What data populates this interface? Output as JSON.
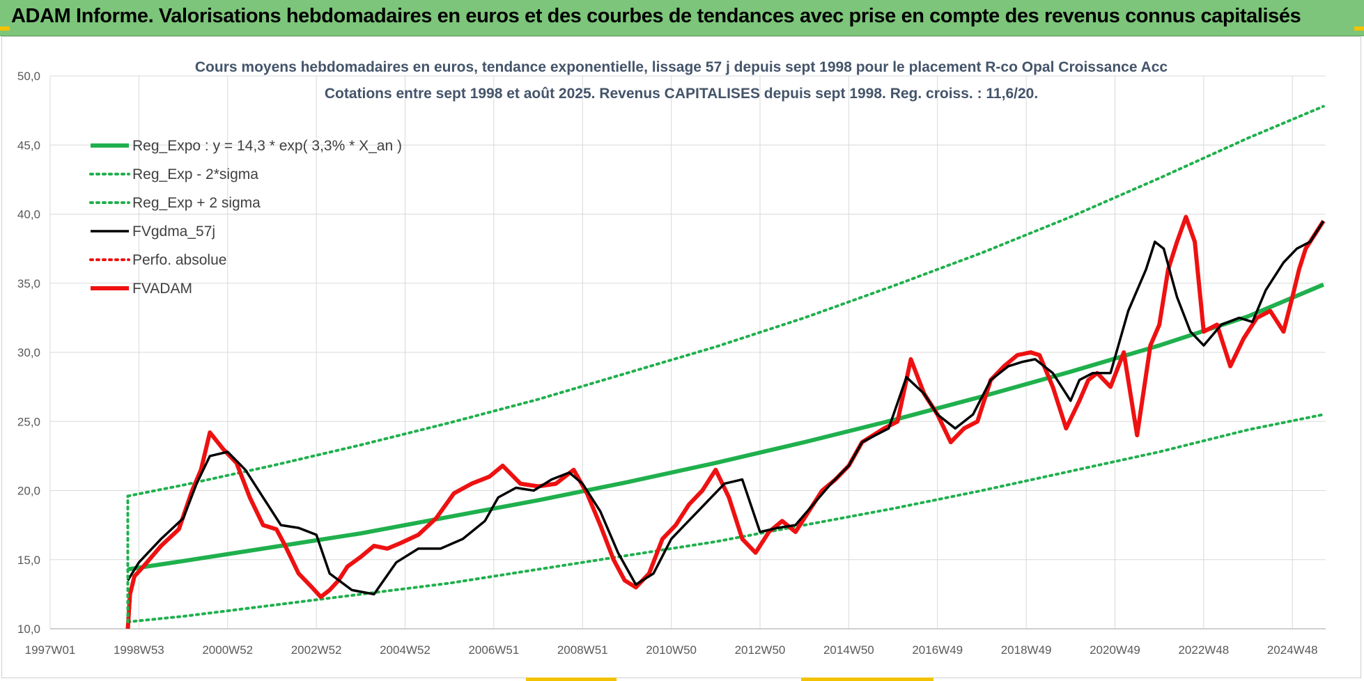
{
  "header": {
    "title": "ADAM Informe. Valorisations hebdomadaires en euros et des courbes de tendances avec prise en compte des revenus connus capitalisés"
  },
  "colors": {
    "banner": "#7cc57a",
    "reg_green": "#1fb04d",
    "black": "#000000",
    "red": "#ee1111",
    "grid": "#d9d9d9",
    "accent_yellow": "#f2c200"
  },
  "chart_data": {
    "type": "line",
    "title_line1": "Cours moyens hebdomadaires en euros, tendance exponentielle, lissage 57 j depuis sept 1998 pour le placement R-co Opal Croissance Acc",
    "title_line2": "Cotations entre sept 1998 et août 2025. Revenus CAPITALISES depuis sept 1998. Reg. croiss. : 11,6/20.",
    "xlabel": "",
    "ylabel": "",
    "ylim": [
      10,
      50
    ],
    "xlim": [
      1997.0,
      2025.75
    ],
    "y_ticks": [
      "10,0",
      "15,0",
      "20,0",
      "25,0",
      "30,0",
      "35,0",
      "40,0",
      "45,0",
      "50,0"
    ],
    "x_ticks": [
      {
        "label": "1997W01",
        "x": 1997.0
      },
      {
        "label": "1998W53",
        "x": 1999.0
      },
      {
        "label": "2000W52",
        "x": 2001.0
      },
      {
        "label": "2002W52",
        "x": 2003.0
      },
      {
        "label": "2004W52",
        "x": 2005.0
      },
      {
        "label": "2006W51",
        "x": 2007.0
      },
      {
        "label": "2008W51",
        "x": 2009.0
      },
      {
        "label": "2010W50",
        "x": 2011.0
      },
      {
        "label": "2012W50",
        "x": 2013.0
      },
      {
        "label": "2014W50",
        "x": 2015.0
      },
      {
        "label": "2016W49",
        "x": 2017.0
      },
      {
        "label": "2018W49",
        "x": 2019.0
      },
      {
        "label": "2020W49",
        "x": 2021.0
      },
      {
        "label": "2022W48",
        "x": 2023.0
      },
      {
        "label": "2024W48",
        "x": 2025.0
      }
    ],
    "grid": true,
    "legend_position": "top-left",
    "legend": [
      {
        "name": "Reg_Expo : y = 14,3 * exp( 3,3% *  X_an )",
        "color": "#1fb04d",
        "style": "solid-thick"
      },
      {
        "name": "Reg_Exp - 2*sigma",
        "color": "#1fb04d",
        "style": "dotted"
      },
      {
        "name": "Reg_Exp + 2 sigma",
        "color": "#1fb04d",
        "style": "dotted"
      },
      {
        "name": "FVgdma_57j",
        "color": "#000000",
        "style": "solid"
      },
      {
        "name": "Perfo. absolue",
        "color": "#ee1111",
        "style": "dotted"
      },
      {
        "name": "FVADAM",
        "color": "#ee1111",
        "style": "solid-thick"
      }
    ],
    "series": [
      {
        "name": "Reg_Expo : y = 14,3 * exp( 3,3% *  X_an )",
        "x": [
          1998.75,
          2000.0,
          2002.0,
          2004.0,
          2006.0,
          2008.0,
          2010.0,
          2012.0,
          2014.0,
          2016.0,
          2018.0,
          2020.0,
          2022.0,
          2024.0,
          2025.7
        ],
        "values": [
          14.3,
          14.9,
          15.9,
          16.9,
          18.1,
          19.3,
          20.6,
          22.0,
          23.5,
          25.1,
          26.8,
          28.6,
          30.5,
          32.6,
          34.9
        ]
      },
      {
        "name": "Reg_Exp - 2*sigma",
        "x": [
          1998.75,
          2000.0,
          2002.0,
          2004.0,
          2006.0,
          2008.0,
          2010.0,
          2012.0,
          2014.0,
          2016.0,
          2018.0,
          2020.0,
          2022.0,
          2024.0,
          2025.7
        ],
        "values": [
          10.5,
          10.9,
          11.7,
          12.5,
          13.3,
          14.3,
          15.3,
          16.3,
          17.5,
          18.7,
          20.0,
          21.4,
          22.8,
          24.4,
          25.5
        ]
      },
      {
        "name": "Reg_Exp + 2 sigma",
        "x": [
          1998.75,
          2000.0,
          2002.0,
          2004.0,
          2006.0,
          2008.0,
          2010.0,
          2012.0,
          2014.0,
          2016.0,
          2018.0,
          2020.0,
          2022.0,
          2024.0,
          2025.7
        ],
        "values": [
          19.6,
          20.4,
          21.8,
          23.3,
          24.9,
          26.6,
          28.5,
          30.4,
          32.5,
          34.8,
          37.2,
          39.8,
          42.6,
          45.5,
          47.8
        ]
      },
      {
        "name": "FVgdma_57j",
        "x": [
          1998.75,
          1999.0,
          1999.5,
          2000.0,
          2000.3,
          2000.6,
          2001.0,
          2001.4,
          2001.8,
          2002.2,
          2002.6,
          2003.0,
          2003.3,
          2003.8,
          2004.3,
          2004.8,
          2005.3,
          2005.8,
          2006.3,
          2006.8,
          2007.1,
          2007.5,
          2007.9,
          2008.3,
          2008.7,
          2009.0,
          2009.4,
          2009.8,
          2010.2,
          2010.6,
          2011.0,
          2011.3,
          2011.6,
          2011.9,
          2012.2,
          2012.6,
          2013.0,
          2013.4,
          2013.8,
          2014.2,
          2014.6,
          2015.0,
          2015.3,
          2015.6,
          2015.9,
          2016.3,
          2016.7,
          2017.0,
          2017.4,
          2017.8,
          2018.2,
          2018.6,
          2018.9,
          2019.2,
          2019.6,
          2020.0,
          2020.2,
          2020.5,
          2020.9,
          2021.3,
          2021.7,
          2021.9,
          2022.1,
          2022.4,
          2022.7,
          2023.0,
          2023.4,
          2023.8,
          2024.1,
          2024.4,
          2024.8,
          2025.1,
          2025.4,
          2025.7
        ],
        "values": [
          13.5,
          14.8,
          16.5,
          18.0,
          20.5,
          22.5,
          22.8,
          21.5,
          19.5,
          17.5,
          17.3,
          16.8,
          14.0,
          12.8,
          12.5,
          14.8,
          15.8,
          15.8,
          16.5,
          17.8,
          19.5,
          20.2,
          20.0,
          20.8,
          21.3,
          20.5,
          18.5,
          15.5,
          13.2,
          14.0,
          16.5,
          17.5,
          18.5,
          19.5,
          20.5,
          20.8,
          17.0,
          17.3,
          17.5,
          19.0,
          20.5,
          21.8,
          23.5,
          24.0,
          24.5,
          28.2,
          27.0,
          25.5,
          24.5,
          25.5,
          28.0,
          29.0,
          29.3,
          29.5,
          28.5,
          26.5,
          28.0,
          28.5,
          28.5,
          33.0,
          36.0,
          38.0,
          37.5,
          34.0,
          31.5,
          30.5,
          32.0,
          32.5,
          32.2,
          34.5,
          36.5,
          37.5,
          38.0,
          39.5
        ]
      },
      {
        "name": "FVADAM",
        "x": [
          1998.75,
          1998.8,
          1998.9,
          1999.1,
          1999.5,
          1999.9,
          2000.2,
          2000.4,
          2000.6,
          2000.9,
          2001.2,
          2001.5,
          2001.8,
          2002.1,
          2002.3,
          2002.6,
          2002.9,
          2003.1,
          2003.3,
          2003.5,
          2003.7,
          2004.0,
          2004.3,
          2004.6,
          2004.9,
          2005.3,
          2005.7,
          2006.1,
          2006.5,
          2006.9,
          2007.2,
          2007.6,
          2008.0,
          2008.4,
          2008.8,
          2009.1,
          2009.4,
          2009.7,
          2009.95,
          2010.2,
          2010.5,
          2010.8,
          2011.1,
          2011.4,
          2011.7,
          2012.0,
          2012.3,
          2012.6,
          2012.9,
          2013.2,
          2013.5,
          2013.8,
          2014.1,
          2014.4,
          2014.7,
          2015.0,
          2015.3,
          2015.55,
          2015.8,
          2016.1,
          2016.4,
          2016.7,
          2017.0,
          2017.3,
          2017.6,
          2017.9,
          2018.2,
          2018.5,
          2018.8,
          2019.1,
          2019.3,
          2019.6,
          2019.9,
          2020.2,
          2020.4,
          2020.6,
          2020.9,
          2021.2,
          2021.5,
          2021.8,
          2022.0,
          2022.2,
          2022.4,
          2022.6,
          2022.8,
          2023.0,
          2023.3,
          2023.6,
          2023.9,
          2024.2,
          2024.5,
          2024.8,
          2025.0,
          2025.15,
          2025.3,
          2025.5,
          2025.7
        ],
        "values": [
          10.0,
          12.5,
          13.8,
          14.5,
          16.0,
          17.2,
          20.0,
          21.5,
          24.2,
          23.0,
          22.0,
          19.5,
          17.5,
          17.2,
          16.0,
          14.0,
          13.0,
          12.3,
          12.8,
          13.5,
          14.5,
          15.2,
          16.0,
          15.8,
          16.2,
          16.8,
          18.0,
          19.8,
          20.5,
          21.0,
          21.8,
          20.5,
          20.3,
          20.5,
          21.5,
          19.8,
          17.5,
          15.0,
          13.5,
          13.0,
          14.0,
          16.5,
          17.5,
          19.0,
          20.0,
          21.5,
          19.5,
          16.5,
          15.5,
          17.0,
          17.8,
          17.0,
          18.5,
          20.0,
          20.8,
          21.8,
          23.5,
          24.0,
          24.5,
          25.0,
          29.5,
          27.0,
          25.5,
          23.5,
          24.5,
          25.0,
          28.0,
          29.0,
          29.8,
          30.0,
          29.8,
          27.5,
          24.5,
          26.5,
          28.0,
          28.5,
          27.5,
          30.0,
          24.0,
          30.5,
          32.0,
          36.0,
          38.0,
          39.8,
          38.0,
          31.5,
          32.0,
          29.0,
          31.0,
          32.5,
          33.0,
          31.5,
          34.0,
          36.0,
          37.5,
          38.5,
          39.5
        ]
      }
    ]
  }
}
